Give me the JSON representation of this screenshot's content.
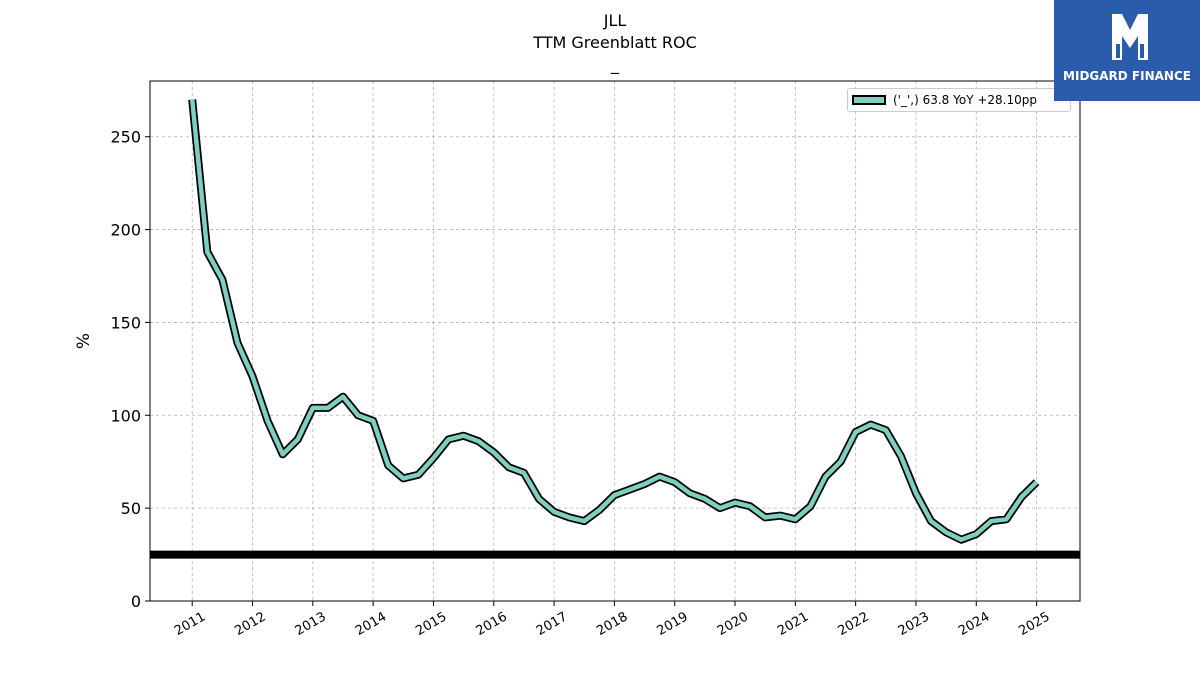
{
  "chart_data": {
    "type": "line",
    "title_lines": [
      "JLL",
      "TTM Greenblatt ROC",
      "_"
    ],
    "ylabel": "%",
    "xlabel": "",
    "ylim": [
      0,
      280
    ],
    "xlim": [
      2010.3,
      2025.72
    ],
    "y_ticks": [
      0,
      50,
      100,
      150,
      200,
      250
    ],
    "x_ticks": [
      "2011",
      "2012",
      "2013",
      "2014",
      "2015",
      "2016",
      "2017",
      "2018",
      "2019",
      "2020",
      "2021",
      "2022",
      "2023",
      "2024",
      "2025"
    ],
    "grid": true,
    "legend_position": "top-right",
    "series": [
      {
        "name": "('_',) 63.8 YoY +28.10pp",
        "color": "#7ecfc0",
        "x": [
          2011.0,
          2011.25,
          2011.5,
          2011.75,
          2012.0,
          2012.25,
          2012.5,
          2012.75,
          2013.0,
          2013.25,
          2013.5,
          2013.75,
          2014.0,
          2014.25,
          2014.5,
          2014.75,
          2015.0,
          2015.25,
          2015.5,
          2015.75,
          2016.0,
          2016.25,
          2016.5,
          2016.75,
          2017.0,
          2017.25,
          2017.5,
          2017.75,
          2018.0,
          2018.25,
          2018.5,
          2018.75,
          2019.0,
          2019.25,
          2019.5,
          2019.75,
          2020.0,
          2020.25,
          2020.5,
          2020.75,
          2021.0,
          2021.25,
          2021.5,
          2021.75,
          2022.0,
          2022.25,
          2022.5,
          2022.75,
          2023.0,
          2023.25,
          2023.5,
          2023.75,
          2024.0,
          2024.25,
          2024.5,
          2024.75,
          2025.0
        ],
        "values": [
          270,
          188,
          173,
          139,
          121,
          97,
          79,
          87,
          104,
          104,
          110,
          100,
          97,
          73,
          66,
          68,
          77,
          87,
          89,
          86,
          80,
          72,
          69,
          55,
          48,
          45,
          43,
          49,
          57,
          60,
          63,
          67,
          64,
          58,
          55,
          50,
          53,
          51,
          45,
          46,
          44,
          51,
          67,
          75,
          91,
          95,
          92,
          78,
          58,
          43,
          37,
          33,
          36,
          43,
          44,
          56,
          64
        ]
      }
    ],
    "reference_line": {
      "y": 25,
      "color": "#000000"
    }
  },
  "branding": {
    "logo_text": "MIDGARD FINANCE"
  }
}
